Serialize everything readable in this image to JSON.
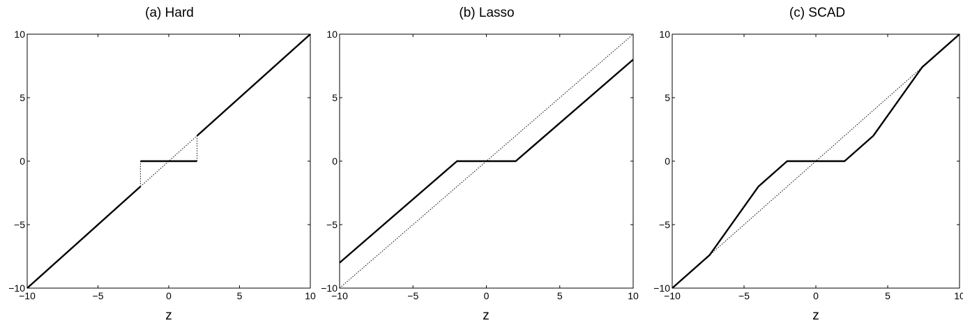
{
  "chart_data": [
    {
      "type": "line",
      "title": "(a) Hard",
      "xlabel": "z",
      "ylabel": "",
      "xlim": [
        -10,
        10
      ],
      "ylim": [
        -10,
        10
      ],
      "xticks": [
        -10,
        -5,
        0,
        5,
        10
      ],
      "yticks": [
        -10,
        -5,
        0,
        5,
        10
      ],
      "grid": false,
      "series": [
        {
          "style": "solid-thick",
          "x": [
            -10,
            -2
          ],
          "y": [
            -10,
            -2
          ]
        },
        {
          "style": "solid-thick",
          "x": [
            -2,
            2
          ],
          "y": [
            0,
            0
          ]
        },
        {
          "style": "solid-thick",
          "x": [
            2,
            10
          ],
          "y": [
            2,
            10
          ]
        },
        {
          "style": "dotted-thin",
          "x": [
            -2,
            2
          ],
          "y": [
            -2,
            2
          ]
        },
        {
          "style": "dotted-thin",
          "x": [
            -2,
            -2
          ],
          "y": [
            -2,
            0
          ]
        },
        {
          "style": "dotted-thin",
          "x": [
            2,
            2
          ],
          "y": [
            0,
            2
          ]
        }
      ]
    },
    {
      "type": "line",
      "title": "(b) Lasso",
      "xlabel": "z",
      "ylabel": "",
      "xlim": [
        -10,
        10
      ],
      "ylim": [
        -10,
        10
      ],
      "xticks": [
        -10,
        -5,
        0,
        5,
        10
      ],
      "yticks": [
        -10,
        -5,
        0,
        5,
        10
      ],
      "grid": false,
      "series": [
        {
          "style": "solid-thick",
          "x": [
            -10,
            -2,
            2,
            10
          ],
          "y": [
            -8,
            0,
            0,
            8
          ]
        },
        {
          "style": "dotted-thin",
          "x": [
            -10,
            10
          ],
          "y": [
            -10,
            10
          ]
        }
      ]
    },
    {
      "type": "line",
      "title": "(c) SCAD",
      "xlabel": "z",
      "ylabel": "",
      "xlim": [
        -10,
        10
      ],
      "ylim": [
        -10,
        10
      ],
      "xticks": [
        -10,
        -5,
        0,
        5,
        10
      ],
      "yticks": [
        -10,
        -5,
        0,
        5,
        10
      ],
      "grid": false,
      "series": [
        {
          "style": "solid-thick",
          "x": [
            -10,
            -7.4,
            -4,
            -2,
            2,
            4,
            7.4,
            10
          ],
          "y": [
            -10,
            -7.4,
            -2,
            0,
            0,
            2,
            7.4,
            10
          ]
        },
        {
          "style": "dotted-thin",
          "x": [
            -10,
            10
          ],
          "y": [
            -10,
            10
          ]
        }
      ]
    }
  ]
}
